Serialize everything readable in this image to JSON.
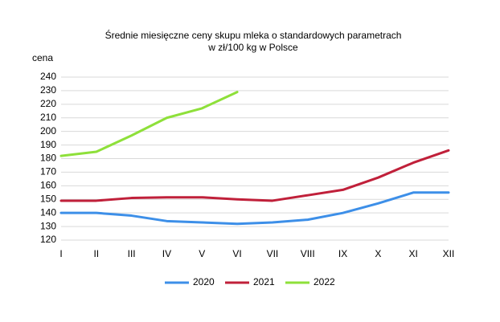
{
  "chart_data": {
    "type": "line",
    "title": "Średnie miesięczne ceny skupu mleka o standardowych parametrach",
    "subtitle": "w zł/100 kg w Polsce",
    "y_label": "cena",
    "categories": [
      "I",
      "II",
      "III",
      "IV",
      "V",
      "VI",
      "VII",
      "VIII",
      "IX",
      "X",
      "XI",
      "XII"
    ],
    "series": [
      {
        "name": "2020",
        "color": "#3d8fe8",
        "values": [
          140,
          140,
          138,
          134,
          133,
          132,
          133,
          135,
          140,
          147,
          155,
          155
        ]
      },
      {
        "name": "2021",
        "color": "#c0203a",
        "values": [
          149,
          149,
          151,
          151.5,
          151.5,
          150,
          149,
          153,
          157,
          166,
          177,
          186
        ]
      },
      {
        "name": "2022",
        "color": "#8ee03a",
        "values": [
          182,
          185,
          197,
          210,
          217,
          229,
          null,
          null,
          null,
          null,
          null,
          null
        ]
      }
    ],
    "ylim": [
      120,
      240
    ],
    "yticks": [
      120,
      130,
      140,
      150,
      160,
      170,
      180,
      190,
      200,
      210,
      220,
      230,
      240
    ],
    "grid": true,
    "legend": "bottom"
  }
}
